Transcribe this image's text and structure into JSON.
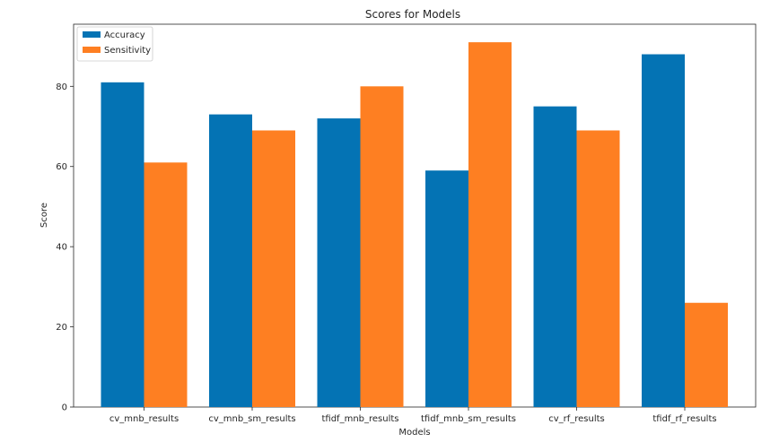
{
  "chart_data": {
    "type": "bar",
    "title": "Scores for Models",
    "xlabel": "Models",
    "ylabel": "Score",
    "categories": [
      "cv_mnb_results",
      "cv_mnb_sm_results",
      "tfidf_mnb_results",
      "tfidf_mnb_sm_results",
      "cv_rf_results",
      "tfidf_rf_results"
    ],
    "series": [
      {
        "name": "Accuracy",
        "color": "#0473b4",
        "values": [
          81,
          73,
          72,
          59,
          75,
          88
        ]
      },
      {
        "name": "Sensitivity",
        "color": "#fe7f22",
        "values": [
          61,
          69,
          80,
          91,
          69,
          26
        ]
      }
    ],
    "ylim": [
      0,
      95.5
    ],
    "yticks": [
      0,
      20,
      40,
      60,
      80
    ],
    "grid": false,
    "legend_position": "top-left"
  }
}
